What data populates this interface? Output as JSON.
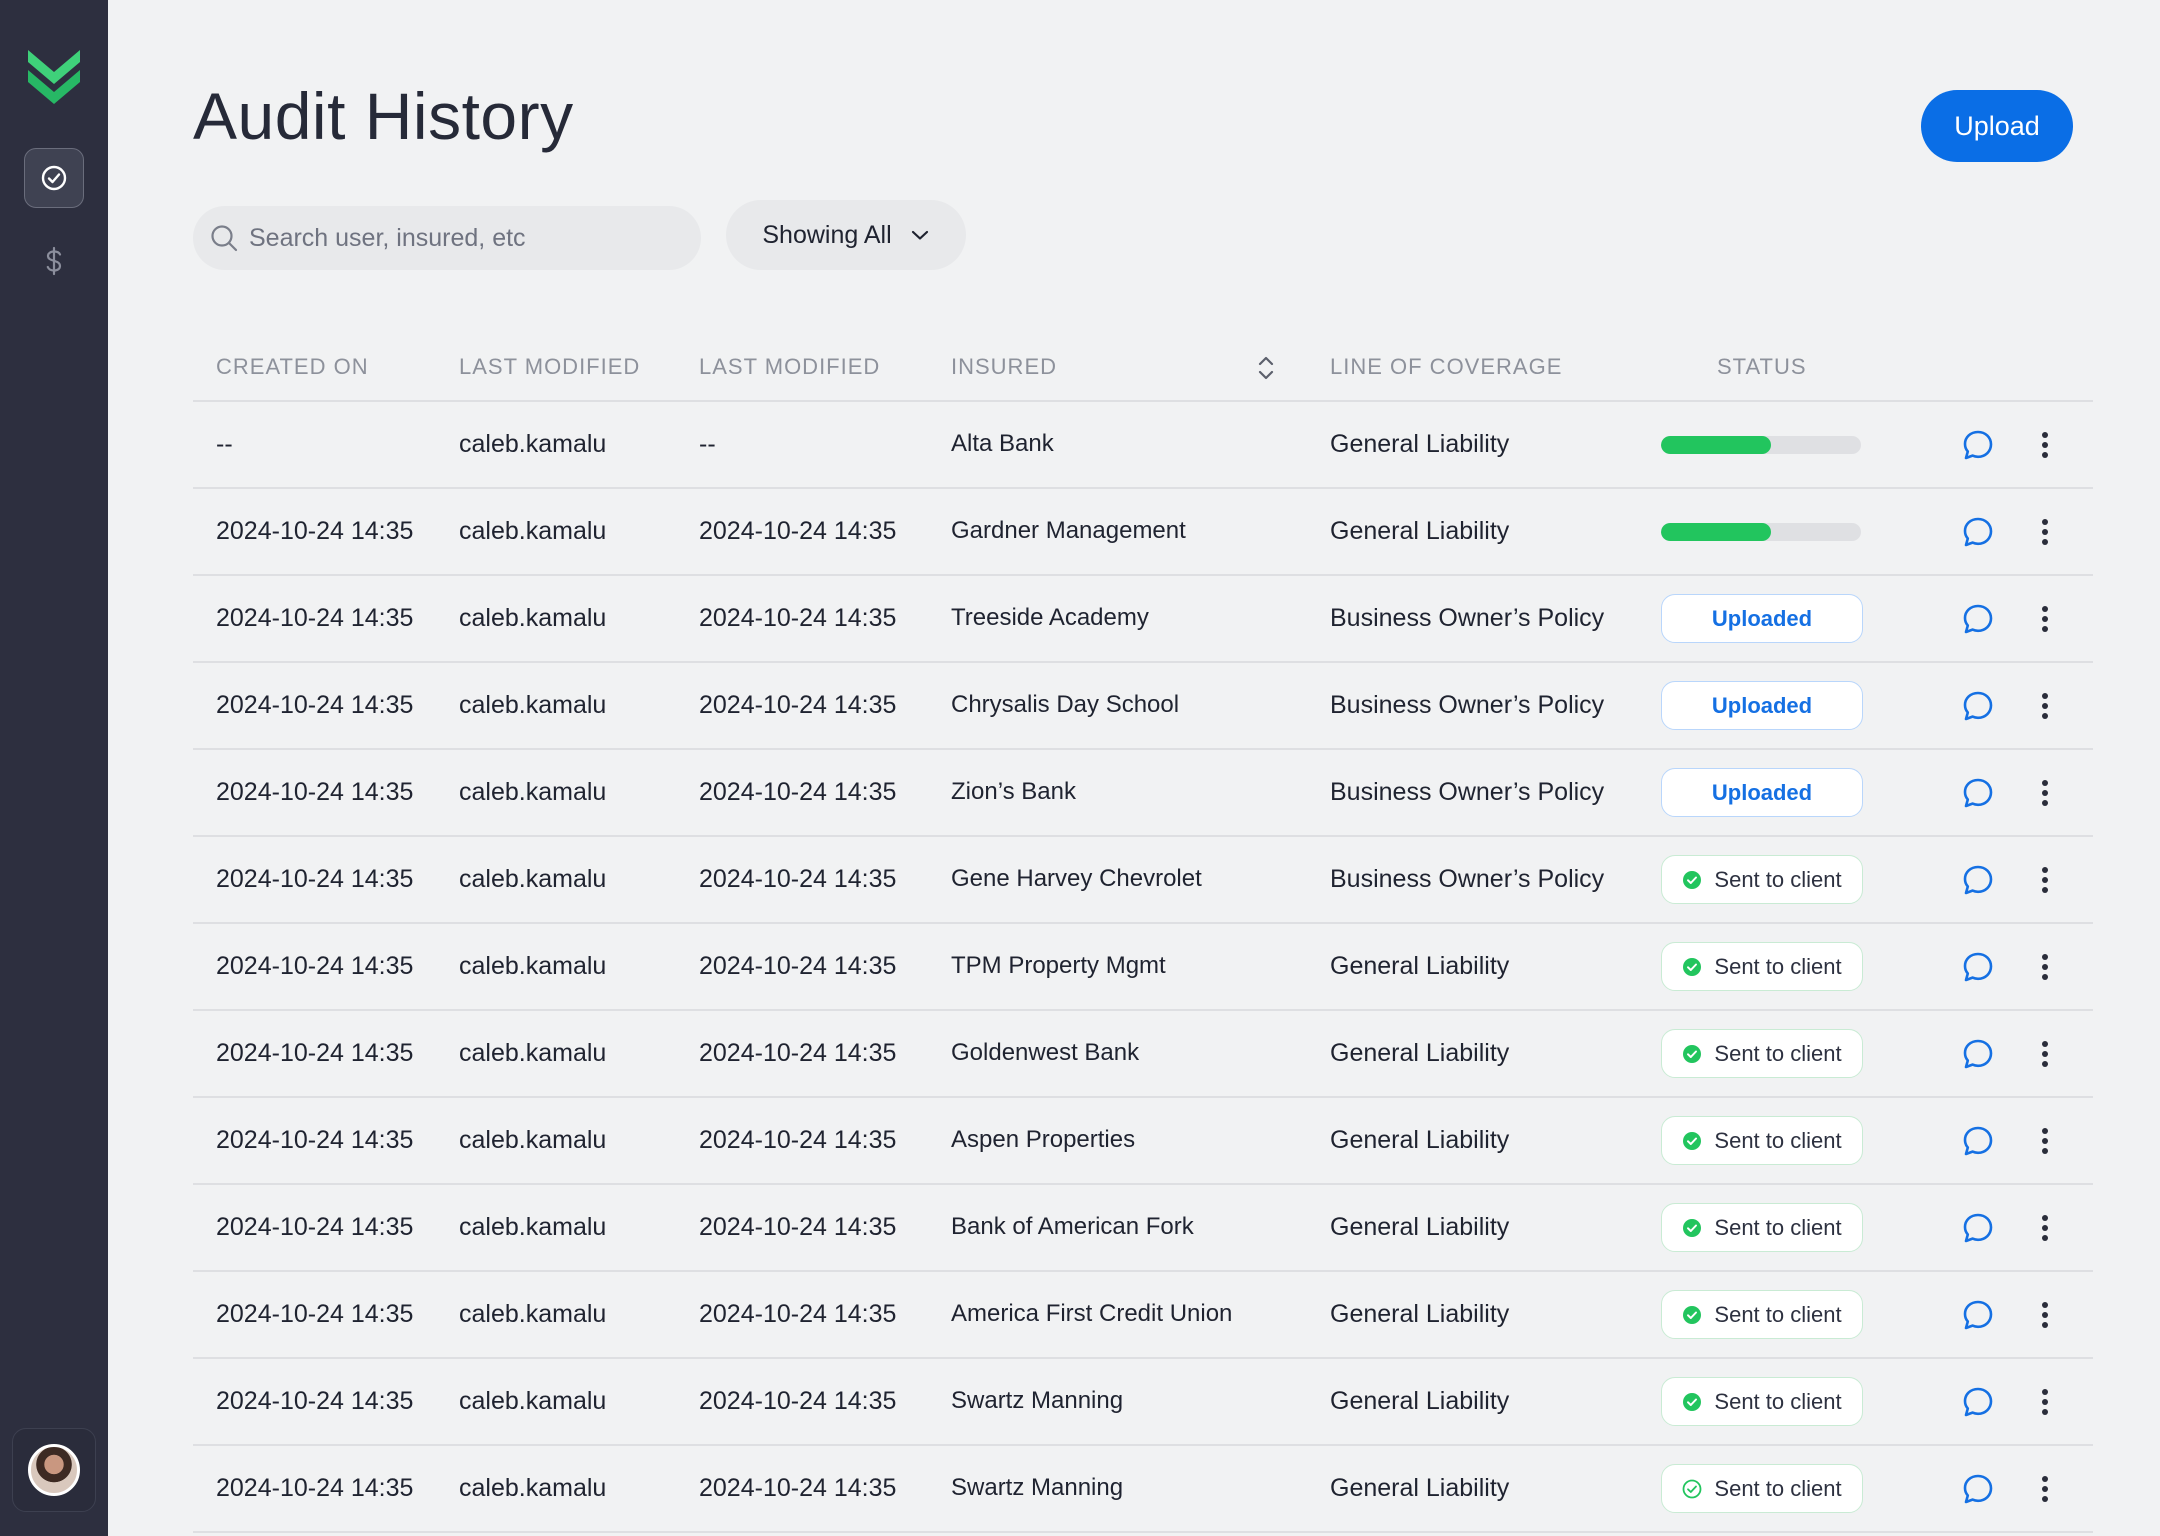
{
  "app": {
    "brand": "logo-chevrons"
  },
  "colors": {
    "accent": "#0a6ee6",
    "success": "#22c55e",
    "sidebar": "#2d2f3f"
  },
  "sidebar": {
    "items": [
      {
        "icon": "check-circle-icon",
        "active": true
      },
      {
        "icon": "dollar-icon",
        "active": false
      }
    ]
  },
  "header": {
    "title": "Audit History",
    "upload_label": "Upload"
  },
  "search": {
    "placeholder": "Search user, insured, etc"
  },
  "filter": {
    "label": "Showing All"
  },
  "table": {
    "columns": [
      "CREATED ON",
      "LAST MODIFIED",
      "LAST MODIFIED",
      "INSURED",
      "LINE OF COVERAGE",
      "STATUS"
    ],
    "rows": [
      {
        "created": "--",
        "user": "caleb.kamalu",
        "modified": "--",
        "insured": "Alta Bank",
        "coverage": "General Liability",
        "status": {
          "type": "progress",
          "progress": 0.55
        }
      },
      {
        "created": "2024-10-24 14:35",
        "user": "caleb.kamalu",
        "modified": "2024-10-24 14:35",
        "insured": "Gardner Management",
        "coverage": "General Liability",
        "status": {
          "type": "progress",
          "progress": 0.55
        }
      },
      {
        "created": "2024-10-24 14:35",
        "user": "caleb.kamalu",
        "modified": "2024-10-24 14:35",
        "insured": "Treeside Academy",
        "coverage": "Business Owner’s Policy",
        "status": {
          "type": "uploaded",
          "label": "Uploaded"
        }
      },
      {
        "created": "2024-10-24 14:35",
        "user": "caleb.kamalu",
        "modified": "2024-10-24 14:35",
        "insured": "Chrysalis Day School",
        "coverage": "Business Owner’s Policy",
        "status": {
          "type": "uploaded",
          "label": "Uploaded"
        }
      },
      {
        "created": "2024-10-24 14:35",
        "user": "caleb.kamalu",
        "modified": "2024-10-24 14:35",
        "insured": "Zion’s Bank",
        "coverage": "Business Owner’s Policy",
        "status": {
          "type": "uploaded",
          "label": "Uploaded"
        }
      },
      {
        "created": "2024-10-24 14:35",
        "user": "caleb.kamalu",
        "modified": "2024-10-24 14:35",
        "insured": "Gene Harvey Chevrolet",
        "coverage": "Business Owner’s Policy",
        "status": {
          "type": "sent",
          "label": "Sent to client"
        }
      },
      {
        "created": "2024-10-24 14:35",
        "user": "caleb.kamalu",
        "modified": "2024-10-24 14:35",
        "insured": "TPM Property Mgmt",
        "coverage": "General Liability",
        "status": {
          "type": "sent",
          "label": "Sent to client"
        }
      },
      {
        "created": "2024-10-24 14:35",
        "user": "caleb.kamalu",
        "modified": "2024-10-24 14:35",
        "insured": "Goldenwest Bank",
        "coverage": "General Liability",
        "status": {
          "type": "sent",
          "label": "Sent to client"
        }
      },
      {
        "created": "2024-10-24 14:35",
        "user": "caleb.kamalu",
        "modified": "2024-10-24 14:35",
        "insured": "Aspen Properties",
        "coverage": "General Liability",
        "status": {
          "type": "sent",
          "label": "Sent to client"
        }
      },
      {
        "created": "2024-10-24 14:35",
        "user": "caleb.kamalu",
        "modified": "2024-10-24 14:35",
        "insured": "Bank of American Fork",
        "coverage": "General Liability",
        "status": {
          "type": "sent",
          "label": "Sent to client"
        }
      },
      {
        "created": "2024-10-24 14:35",
        "user": "caleb.kamalu",
        "modified": "2024-10-24 14:35",
        "insured": "America First Credit Union",
        "coverage": "General Liability",
        "status": {
          "type": "sent",
          "label": "Sent to client"
        }
      },
      {
        "created": "2024-10-24 14:35",
        "user": "caleb.kamalu",
        "modified": "2024-10-24 14:35",
        "insured": "Swartz Manning",
        "coverage": "General Liability",
        "status": {
          "type": "sent",
          "label": "Sent to client"
        }
      },
      {
        "created": "2024-10-24 14:35",
        "user": "caleb.kamalu",
        "modified": "2024-10-24 14:35",
        "insured": "Swartz Manning",
        "coverage": "General Liability",
        "status": {
          "type": "sent-outline",
          "label": "Sent to client"
        }
      }
    ]
  }
}
